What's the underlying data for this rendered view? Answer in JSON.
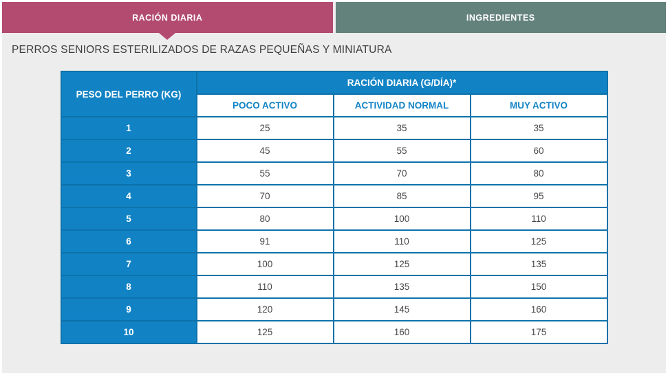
{
  "tabs": [
    {
      "label": "RACIÓN DIARIA",
      "active": true
    },
    {
      "label": "INGREDIENTES",
      "active": false
    }
  ],
  "page_title": "PERROS SENIORS ESTERILIZADOS DE RAZAS PEQUEÑAS Y MINIATURA",
  "table": {
    "corner_header": "PESO DEL PERRO (KG)",
    "group_header": "RACIÓN DIARIA (G/DÍA)*",
    "column_headers": [
      "POCO ACTIVO",
      "ACTIVIDAD NORMAL",
      "MUY ACTIVO"
    ],
    "rows": [
      {
        "weight": "1",
        "values": [
          "25",
          "35",
          "35"
        ]
      },
      {
        "weight": "2",
        "values": [
          "45",
          "55",
          "60"
        ]
      },
      {
        "weight": "3",
        "values": [
          "55",
          "70",
          "80"
        ]
      },
      {
        "weight": "4",
        "values": [
          "70",
          "85",
          "95"
        ]
      },
      {
        "weight": "5",
        "values": [
          "80",
          "100",
          "110"
        ]
      },
      {
        "weight": "6",
        "values": [
          "91",
          "110",
          "125"
        ]
      },
      {
        "weight": "7",
        "values": [
          "100",
          "125",
          "135"
        ]
      },
      {
        "weight": "8",
        "values": [
          "110",
          "135",
          "150"
        ]
      },
      {
        "weight": "9",
        "values": [
          "120",
          "145",
          "160"
        ]
      },
      {
        "weight": "10",
        "values": [
          "125",
          "160",
          "175"
        ]
      }
    ]
  },
  "colors": {
    "active_tab": "#b34a70",
    "inactive_tab": "#63827b",
    "header_blue": "#1183c5",
    "border_blue": "#0d72aa",
    "page_background": "#ededed"
  }
}
